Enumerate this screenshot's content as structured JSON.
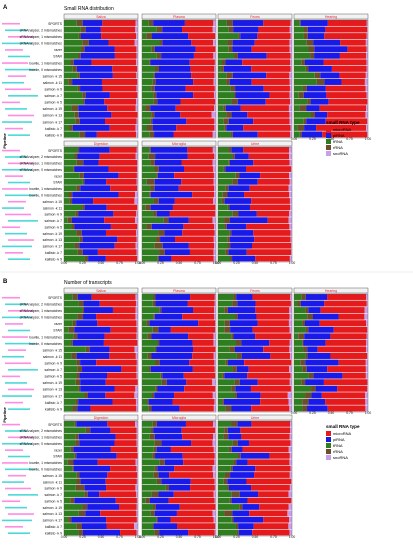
{
  "colors": {
    "microRNA": "#e41a1c",
    "piRNA": "#1a1ae8",
    "tRNA": "#2e7d1f",
    "rRNA": "#6b4f2a",
    "snoRNA": "#c8a0e8",
    "strip_text": "#e8203a",
    "sample_line": "#ff2bd6",
    "side_label_a": "#00c8c8",
    "side_label_b": "#ff5ad6"
  },
  "panels": [
    {
      "letter": "A",
      "title": "Small RNA distribution",
      "ylabel": "Pipeline",
      "facet_top": [
        "Saliva",
        "Plasma",
        "Feces",
        "Hearing"
      ],
      "facet_bottom": [
        "Digestion",
        "Microglia",
        "Urine"
      ]
    },
    {
      "letter": "B",
      "title": "Number of transcripts",
      "ylabel": "Pipeline",
      "facet_top": [
        "Saliva",
        "Plasma",
        "Feces",
        "Hearing"
      ],
      "facet_bottom": [
        "Digestion",
        "Microglia",
        "Urine"
      ]
    }
  ],
  "pipelines": [
    "SPORTS",
    "sRNAnalyzer, 2 mismatches",
    "sRNAnalyzer, 1 mismatches",
    "sRNAnalyzer, 0 mismatches",
    "razer",
    "STAR",
    "bowtie, 1 mismatches",
    "bowtie, 0 mismatches",
    "salmon -k 15",
    "salmon -k 11",
    "salmon -k 9",
    "salmon -k 7",
    "salmon -k 5",
    "salmon -k 19",
    "salmon -k 13",
    "salmon -k 17",
    "kallisto -k 7",
    "kallisto -k 9"
  ],
  "legend": {
    "title": "small RNA type",
    "items": [
      "microRNA",
      "piRNA",
      "tRNA",
      "rRNA",
      "snoRNA"
    ]
  },
  "chart_data": [
    {
      "type": "bar",
      "title": "Small RNA distribution",
      "ylabel": "Pipeline",
      "xlim": [
        0,
        1
      ],
      "x_ticks": [
        "0.00",
        "0.25",
        "0.50",
        "0.75",
        "1.00"
      ],
      "orientation": "horizontal-stacked",
      "categories": [
        "microRNA",
        "piRNA",
        "tRNA",
        "rRNA",
        "snoRNA"
      ],
      "facets": [
        "Saliva",
        "Plasma",
        "Feces",
        "Hearing",
        "Digestion",
        "Microglia",
        "Urine"
      ]
    },
    {
      "type": "bar",
      "title": "Number of transcripts",
      "ylabel": "Pipeline",
      "xlim": [
        0,
        1
      ],
      "x_ticks": [
        "0.00",
        "0.25",
        "0.50",
        "0.75",
        "1.00"
      ],
      "orientation": "horizontal-stacked",
      "categories": [
        "microRNA",
        "piRNA",
        "tRNA",
        "rRNA",
        "snoRNA"
      ],
      "facets": [
        "Saliva",
        "Plasma",
        "Feces",
        "Hearing",
        "Digestion",
        "Microglia",
        "Urine"
      ]
    }
  ]
}
